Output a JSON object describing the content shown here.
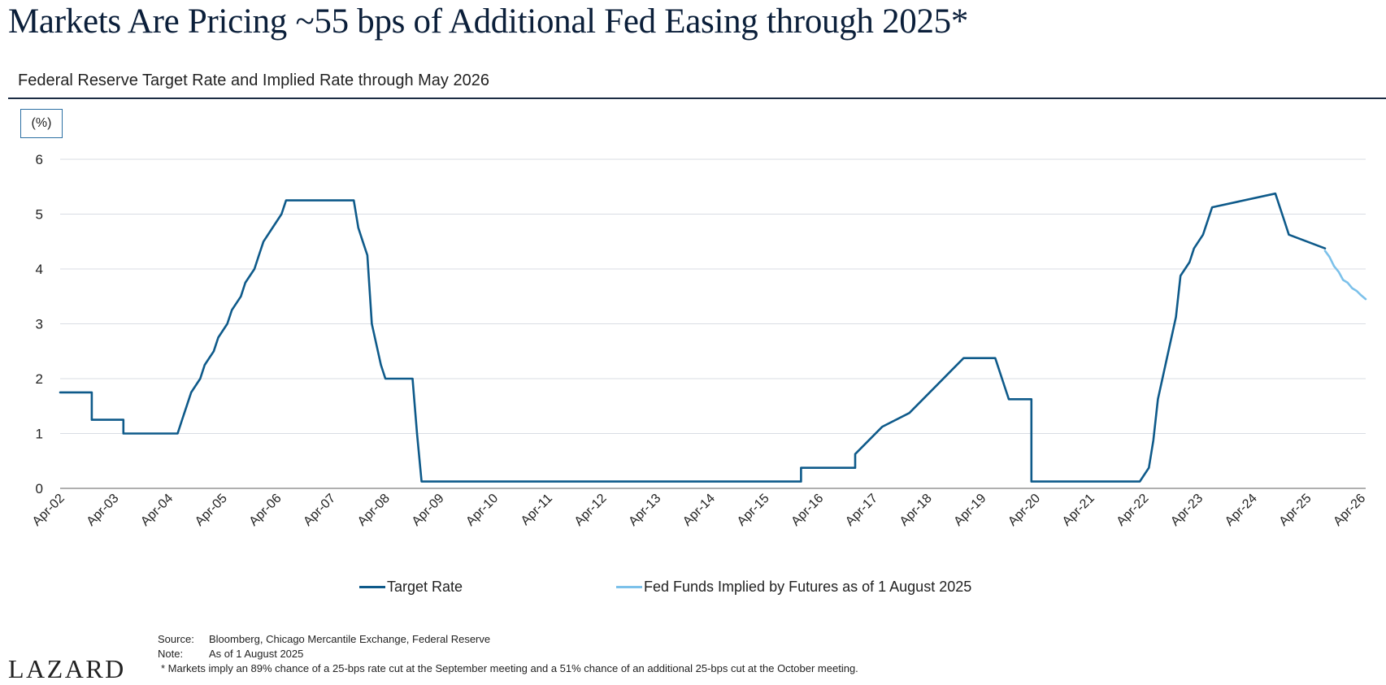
{
  "header": {
    "title": "Markets Are Pricing ~55 bps of Additional Fed Easing through 2025*",
    "subtitle": "Federal Reserve Target Rate and Implied Rate through May 2026",
    "unit_label": "(%)"
  },
  "legend": {
    "target_label": "Target Rate",
    "implied_label": "Fed Funds Implied by Futures as of 1 August 2025"
  },
  "footer": {
    "source_label": "Source:",
    "source_text": "Bloomberg, Chicago Mercantile Exchange, Federal Reserve",
    "note_label": "Note:",
    "note_text": "As of 1 August 2025",
    "footnote": "* Markets imply an 89% chance of a 25-bps rate cut at the September meeting and a 51% chance of an additional 25-bps cut at the October meeting.",
    "logo": "LAZARD"
  },
  "colors": {
    "target": "#0e5a8a",
    "implied": "#7cc1ea",
    "grid": "#d9dde3",
    "axis": "#7f7f7f"
  },
  "chart_data": {
    "type": "line",
    "title": "Federal Reserve Target Rate and Implied Rate through May 2026",
    "ylabel": "(%)",
    "ylim": [
      0,
      6
    ],
    "yticks": [
      0,
      1,
      2,
      3,
      4,
      5,
      6
    ],
    "xlim": [
      "2002-04",
      "2026-05"
    ],
    "xticks": [
      "Apr-02",
      "Apr-03",
      "Apr-04",
      "Apr-05",
      "Apr-06",
      "Apr-07",
      "Apr-08",
      "Apr-09",
      "Apr-10",
      "Apr-11",
      "Apr-12",
      "Apr-13",
      "Apr-14",
      "Apr-15",
      "Apr-16",
      "Apr-17",
      "Apr-18",
      "Apr-19",
      "Apr-20",
      "Apr-21",
      "Apr-22",
      "Apr-23",
      "Apr-24",
      "Apr-25",
      "Apr-26"
    ],
    "grid": true,
    "legend_position": "bottom",
    "series": [
      {
        "name": "Target Rate",
        "x": [
          "2002-04",
          "2002-11",
          "2002-11",
          "2003-06",
          "2003-06",
          "2004-06",
          "2004-07",
          "2004-08",
          "2004-09",
          "2004-11",
          "2004-12",
          "2005-02",
          "2005-03",
          "2005-05",
          "2005-06",
          "2005-08",
          "2005-09",
          "2005-11",
          "2005-12",
          "2006-01",
          "2006-03",
          "2006-05",
          "2006-06",
          "2006-07",
          "2007-09",
          "2007-10",
          "2007-11",
          "2007-12",
          "2008-01",
          "2008-03",
          "2008-04",
          "2008-10",
          "2008-11",
          "2008-12",
          "2015-12",
          "2015-12",
          "2016-12",
          "2016-12",
          "2017-03",
          "2017-06",
          "2017-12",
          "2018-03",
          "2018-06",
          "2018-09",
          "2018-12",
          "2019-07",
          "2019-09",
          "2019-10",
          "2020-03",
          "2020-03",
          "2022-03",
          "2022-05",
          "2022-06",
          "2022-07",
          "2022-09",
          "2022-11",
          "2022-12",
          "2023-02",
          "2023-03",
          "2023-05",
          "2023-07",
          "2024-09",
          "2024-11",
          "2024-12",
          "2025-08"
        ],
        "y": [
          1.75,
          1.75,
          1.25,
          1.25,
          1.0,
          1.0,
          1.25,
          1.5,
          1.75,
          2.0,
          2.25,
          2.5,
          2.75,
          3.0,
          3.25,
          3.5,
          3.75,
          4.0,
          4.25,
          4.5,
          4.75,
          5.0,
          5.25,
          5.25,
          5.25,
          4.75,
          4.5,
          4.25,
          3.0,
          2.25,
          2.0,
          2.0,
          1.0,
          0.125,
          0.125,
          0.375,
          0.375,
          0.625,
          0.875,
          1.125,
          1.375,
          1.625,
          1.875,
          2.125,
          2.375,
          2.375,
          1.875,
          1.625,
          1.625,
          0.125,
          0.125,
          0.375,
          0.875,
          1.625,
          2.375,
          3.125,
          3.875,
          4.125,
          4.375,
          4.625,
          5.125,
          5.375,
          4.875,
          4.625,
          4.375
        ]
      },
      {
        "name": "Fed Funds Implied by Futures as of 1 August 2025",
        "x": [
          "2025-08",
          "2025-09",
          "2025-10",
          "2025-11",
          "2025-12",
          "2026-01",
          "2026-02",
          "2026-03",
          "2026-04",
          "2026-05"
        ],
        "y": [
          4.33,
          4.22,
          4.05,
          3.95,
          3.8,
          3.75,
          3.65,
          3.6,
          3.52,
          3.45
        ]
      }
    ]
  }
}
